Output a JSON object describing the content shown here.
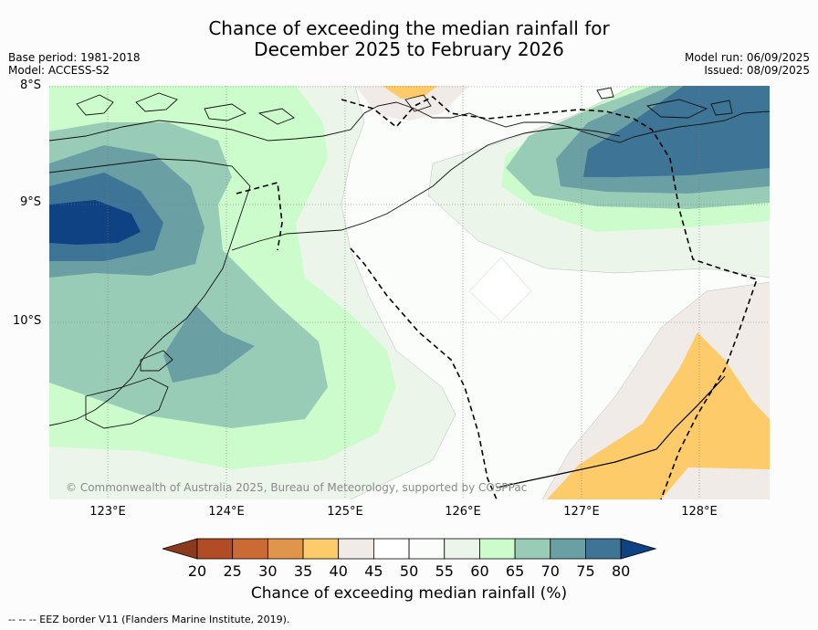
{
  "title": {
    "line1": "Chance of exceeding the median rainfall for",
    "line2": "December 2025 to February 2026"
  },
  "meta": {
    "base_period": "Base period: 1981-2018",
    "model": "Model: ACCESS-S2",
    "model_run": "Model run: 06/09/2025",
    "issued": "Issued: 08/09/2025"
  },
  "axes": {
    "lat_labels": [
      "8°S",
      "9°S",
      "10°S"
    ],
    "lon_labels": [
      "123°E",
      "124°E",
      "125°E",
      "126°E",
      "127°E",
      "128°E"
    ]
  },
  "copyright": "© Commonwealth of Australia 2025, Bureau of Meteorology, supported by COSPPac",
  "colorbar": {
    "ticks": [
      "20",
      "25",
      "30",
      "35",
      "40",
      "45",
      "50",
      "55",
      "60",
      "65",
      "70",
      "75",
      "80"
    ],
    "colors": [
      "#8b3a1e",
      "#b24c26",
      "#cb6a35",
      "#e0964a",
      "#fdcb69",
      "#f1ebe7",
      "#ffffff",
      "#fbfdfb",
      "#ebf5ea",
      "#ccfccc",
      "#99ccb7",
      "#6a9fa4",
      "#3e7597",
      "#0f4282"
    ],
    "label": "Chance of exceeding median rainfall (%)"
  },
  "footer": "--  --  -- EEZ border V11 (Flanders Marine Institute, 2019)."
}
